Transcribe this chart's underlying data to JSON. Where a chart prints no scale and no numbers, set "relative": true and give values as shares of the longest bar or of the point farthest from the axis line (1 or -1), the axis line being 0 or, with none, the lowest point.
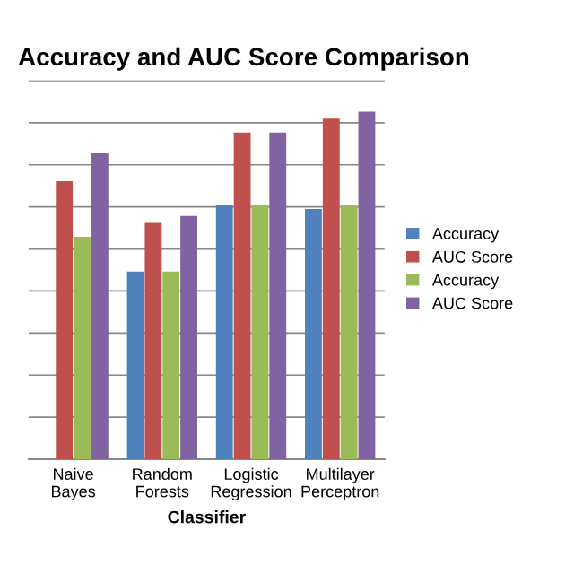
{
  "chart_data": {
    "type": "bar",
    "title": "Accuracy and AUC Score Comparison",
    "xlabel": "Classifier",
    "categories": [
      "Naive Bayes",
      "Random Forests",
      "Logistic Regression",
      "Multilayer Perceptron"
    ],
    "relative": true,
    "grid": "y",
    "legend": "right",
    "tick_labels": "x",
    "series": [
      {
        "name": "Accuracy",
        "color": "#4f81bd",
        "values": [
          null,
          0.54,
          0.73,
          0.72
        ]
      },
      {
        "name": "AUC Score",
        "color": "#c0504d",
        "values": [
          0.8,
          0.68,
          0.94,
          0.98
        ]
      },
      {
        "name": "Accuracy",
        "color": "#9bbb59",
        "values": [
          0.64,
          0.54,
          0.73,
          0.73
        ]
      },
      {
        "name": "AUC Score",
        "color": "#8064a2",
        "values": [
          0.88,
          0.7,
          0.94,
          1.0
        ]
      }
    ]
  }
}
